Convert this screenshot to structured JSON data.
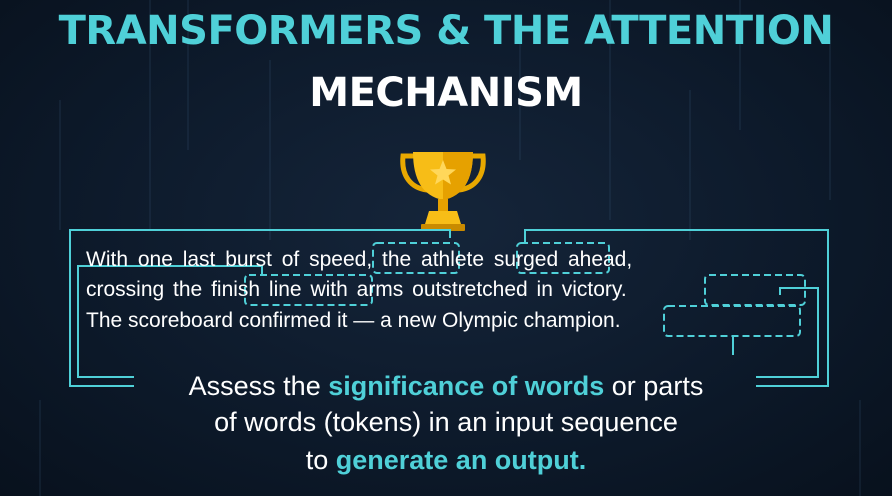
{
  "title": {
    "line1": "TRANSFORMERS & THE ATTENTION",
    "line2": "MECHANISM"
  },
  "icons": {
    "trophy": "trophy-icon"
  },
  "colors": {
    "accent": "#4fd0d8",
    "text": "#ffffff",
    "background": "#0d1a2b",
    "trophy_gold": "#f5b800"
  },
  "passage": {
    "line1": {
      "pre": "With one last burst of ",
      "w_speed": "speed",
      "mid": ", the ",
      "w_athlete": "athlete",
      "post": " surged ahead,"
    },
    "line2": {
      "pre": "crossing the ",
      "w_finish": "finish line",
      "mid": " with arms outstretched in ",
      "w_victory": "victory",
      "post": "."
    },
    "line3": {
      "pre": "The scoreboard confirmed it — a new Olympic ",
      "w_champion": "champion",
      "post": "."
    }
  },
  "caption": {
    "line1": {
      "pre": "Assess the ",
      "highlight": "significance of words",
      "post": " or parts"
    },
    "line2": "of words (tokens) in an input sequence",
    "line3": {
      "pre": "to ",
      "highlight": "generate an output."
    }
  }
}
